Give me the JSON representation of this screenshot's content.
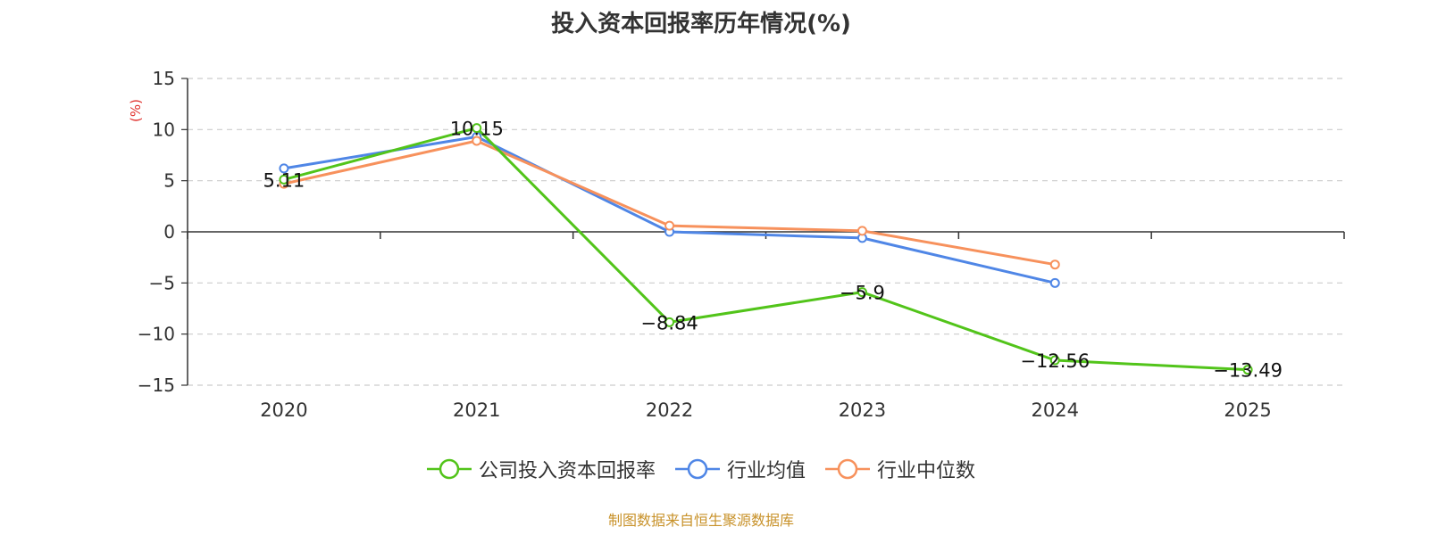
{
  "chart_data": {
    "type": "line",
    "title": "投入资本回报率历年情况(%)",
    "ylabel": "(%)",
    "xlabel": "",
    "categories": [
      "2020",
      "2021",
      "2022",
      "2023",
      "2024",
      "2025"
    ],
    "ylim": [
      -15,
      15
    ],
    "yticks": [
      15,
      10,
      5,
      0,
      -5,
      -10,
      -15
    ],
    "ytick_labels": [
      "15",
      "10",
      "5",
      "0",
      "−5",
      "−10",
      "−15"
    ],
    "grid": true,
    "legend_position": "bottom",
    "series": [
      {
        "name": "公司投入资本回报率",
        "color": "#52c41a",
        "values": [
          5.11,
          10.15,
          -8.84,
          -5.9,
          -12.56,
          -13.49
        ],
        "labels": [
          "5.11",
          "10.15",
          "−8.84",
          "−5.9",
          "−12.56",
          "−13.49"
        ]
      },
      {
        "name": "行业均值",
        "color": "#4f86e6",
        "values": [
          6.2,
          9.3,
          0.0,
          -0.6,
          -5.0,
          null
        ]
      },
      {
        "name": "行业中位数",
        "color": "#f7915c",
        "values": [
          4.7,
          8.9,
          0.6,
          0.1,
          -3.2,
          null
        ]
      }
    ]
  },
  "footer": {
    "source": "制图数据来自恒生聚源数据库"
  }
}
